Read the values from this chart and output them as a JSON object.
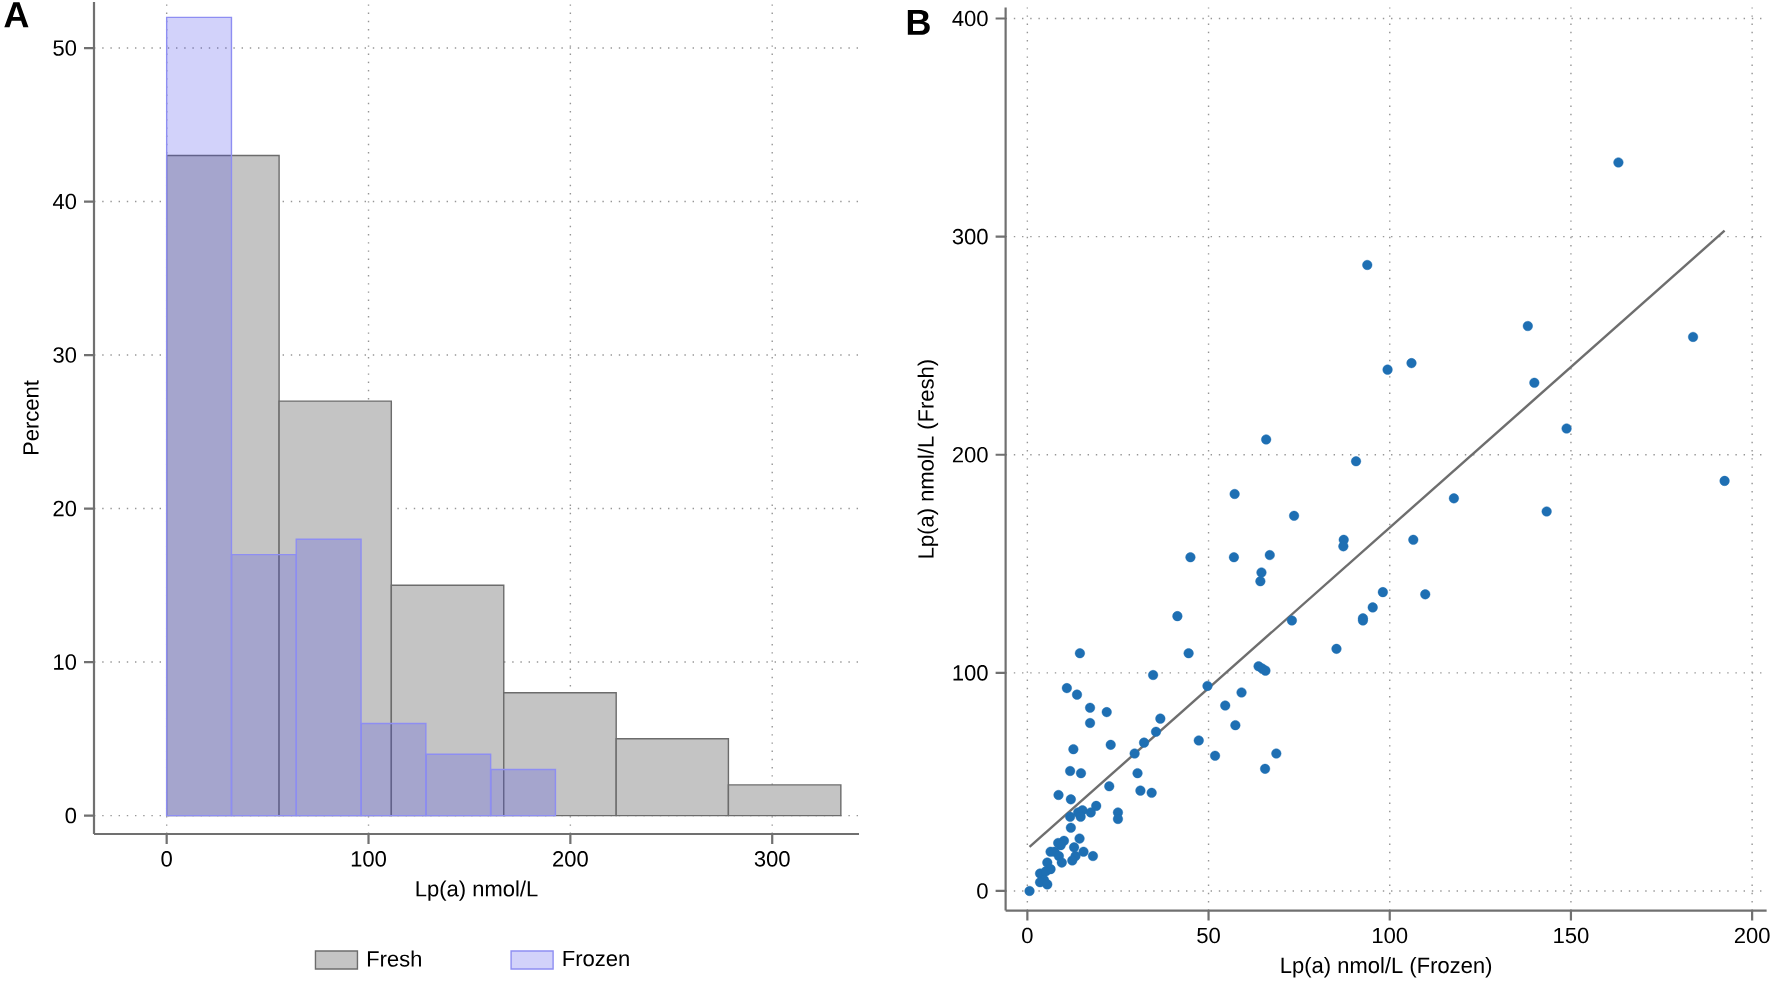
{
  "chart_data": [
    {
      "type": "histogram",
      "title": "A",
      "xlabel": "Lp(a) nmol/L",
      "ylabel": "Percent",
      "bins": [
        0,
        55.7,
        111.3,
        167,
        222.7,
        278.3,
        334
      ],
      "xlim": [
        -36,
        343
      ],
      "ylim": [
        -1.2,
        53
      ],
      "xticks": [
        0,
        100,
        200,
        300
      ],
      "yticks": [
        0,
        10,
        20,
        30,
        40,
        50
      ],
      "grid": true,
      "legend": "bottom",
      "series": [
        {
          "name": "Fresh",
          "color": "#c4c4c4",
          "values": [
            43,
            27,
            15,
            8,
            5,
            2
          ]
        },
        {
          "name": "Frozen",
          "color": "#d2d2fa",
          "bins": [
            0,
            32.1,
            64.2,
            96.3,
            128.4,
            160.5,
            192.6
          ],
          "values": [
            52,
            17,
            18,
            6,
            4,
            3
          ]
        }
      ]
    },
    {
      "type": "scatter",
      "title": "B",
      "xlabel": "Lp(a) nmol/L (Frozen)",
      "ylabel": "Lp(a) nmol/L (Fresh)",
      "xlim": [
        -6,
        204
      ],
      "ylim": [
        -9,
        405
      ],
      "xticks": [
        0,
        50,
        100,
        150,
        200
      ],
      "yticks": [
        0,
        100,
        200,
        300,
        400
      ],
      "grid": true,
      "series": [
        {
          "type": "scatter",
          "marker": "circle",
          "color": "#1e6fb3",
          "x": [
            45.0,
            57.0,
            64.6,
            64.3,
            41.4,
            73.0,
            14.5,
            44.5,
            63.8,
            64.8,
            65.7,
            34.7,
            49.7,
            10.9,
            13.7,
            59.1,
            54.6,
            17.3,
            21.9,
            17.3,
            36.7,
            35.5,
            57.4,
            32.2,
            47.3,
            12.7,
            23.0,
            29.6,
            51.8,
            68.7,
            65.6,
            11.8,
            14.8,
            30.4,
            22.6,
            31.2,
            34.3,
            8.6,
            12.0,
            19.0,
            15.2,
            17.5,
            14.0,
            11.8,
            14.7,
            25.0,
            25.0,
            12.0,
            14.4,
            8.5,
            10.1,
            9.2,
            12.9,
            6.4,
            7.5,
            8.7,
            15.5,
            18.1,
            13.3,
            9.5,
            12.4,
            5.5,
            6.4,
            3.5,
            5.1,
            4.6,
            3.5,
            5.5,
            0.6,
            65.9,
            90.7,
            148.8,
            192.4,
            73.6,
            117.7,
            143.3,
            87.3,
            87.2,
            106.5,
            66.9,
            98.1,
            109.8,
            95.3,
            92.6,
            92.6,
            85.3,
            163.1,
            93.8,
            138.1,
            183.7,
            99.4,
            106.0,
            139.9,
            57.2
          ],
          "values": [
            153,
            153,
            146,
            142,
            126,
            124,
            109,
            109,
            103,
            102,
            101,
            99,
            94,
            93,
            90,
            91,
            85,
            84,
            82,
            77,
            79,
            73,
            76,
            68,
            69,
            65,
            67,
            63,
            62,
            63,
            56,
            55,
            54,
            54,
            48,
            46,
            45,
            44,
            42,
            39,
            37,
            36,
            36,
            34,
            34,
            36,
            33,
            29,
            24,
            22,
            23,
            21,
            20,
            18,
            18,
            16,
            18,
            16,
            16,
            13,
            14,
            13,
            10,
            8,
            9,
            5,
            4,
            3,
            0,
            207,
            197,
            212,
            188,
            172,
            180,
            174,
            161,
            158,
            161,
            154,
            137,
            136,
            130,
            125,
            124,
            111,
            334,
            287,
            259,
            254,
            239,
            242,
            233,
            182
          ]
        },
        {
          "type": "line",
          "color": "#6e6e6e",
          "x": [
            0.6,
            192.4
          ],
          "values": [
            20.2,
            302.7
          ]
        }
      ]
    }
  ]
}
